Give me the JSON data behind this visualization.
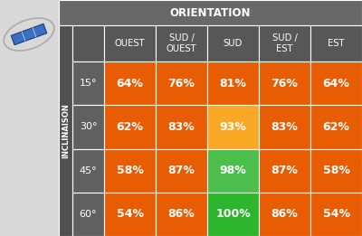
{
  "orientation_label": "ORIENTATION",
  "col_headers": [
    "OUEST",
    "SUD /\nOUEST",
    "SUD",
    "SUD /\nEST",
    "EST"
  ],
  "row_headers": [
    "15°",
    "30°",
    "45°",
    "60°"
  ],
  "inclinaison_label": "INCLINAISON",
  "values": [
    [
      "64%",
      "76%",
      "81%",
      "76%",
      "64%"
    ],
    [
      "62%",
      "83%",
      "93%",
      "83%",
      "62%"
    ],
    [
      "58%",
      "87%",
      "98%",
      "87%",
      "58%"
    ],
    [
      "54%",
      "86%",
      "100%",
      "86%",
      "54%"
    ]
  ],
  "cell_colors": [
    [
      "#e85d04",
      "#e85d04",
      "#e85d04",
      "#e85d04",
      "#e85d04"
    ],
    [
      "#e85d04",
      "#e85d04",
      "#f9a825",
      "#e85d04",
      "#e85d04"
    ],
    [
      "#e85d04",
      "#e85d04",
      "#4cbe4c",
      "#e85d04",
      "#e85d04"
    ],
    [
      "#e85d04",
      "#e85d04",
      "#2db52d",
      "#e85d04",
      "#e85d04"
    ]
  ],
  "header_bg": "#575757",
  "angle_bg": "#606060",
  "inclinaison_bg": "#505050",
  "orientation_bg": "#686868",
  "topleft_bg": "#d8d8d8",
  "fig_bg": "#cccccc",
  "white": "#ffffff"
}
